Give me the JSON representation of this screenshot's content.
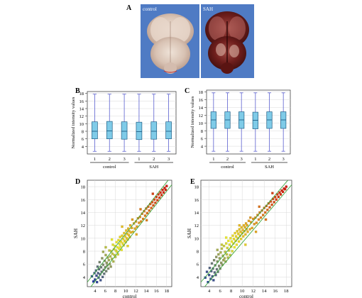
{
  "panels": {
    "A": {
      "letter": "A",
      "left_photo": {
        "label": "control"
      },
      "right_photo": {
        "label": "SAH"
      }
    },
    "B": {
      "letter": "B",
      "chart_index": 0
    },
    "C": {
      "letter": "C",
      "chart_index": 1
    },
    "D": {
      "letter": "D",
      "chart_index": 2
    },
    "E": {
      "letter": "E",
      "chart_index": 3
    }
  },
  "colors": {
    "box_fill": "#7fcbe8",
    "box_stroke": "#1f5f86",
    "whisker": "#5a5fd0",
    "grid": "#d8d8d8",
    "diag_line": "#3fa83f",
    "scatter_low": "#22399c",
    "scatter_mid": "#e8e82a",
    "scatter_high": "#cc1a10"
  },
  "chart_data": [
    {
      "type": "box",
      "ylabel": "Normalized intensity values",
      "yticks": [
        4,
        6,
        8,
        10,
        12,
        14,
        16,
        18
      ],
      "ylim": [
        2,
        18.5
      ],
      "categories": [
        "1",
        "2",
        "3",
        "1",
        "2",
        "3"
      ],
      "groups": [
        "control",
        "SAH"
      ],
      "boxes": [
        {
          "min": 2.7,
          "q1": 6.0,
          "median": 8.0,
          "q3": 10.5,
          "max": 17.8
        },
        {
          "min": 2.7,
          "q1": 6.0,
          "median": 8.1,
          "q3": 10.6,
          "max": 17.8
        },
        {
          "min": 2.7,
          "q1": 5.9,
          "median": 8.0,
          "q3": 10.5,
          "max": 17.8
        },
        {
          "min": 2.7,
          "q1": 5.8,
          "median": 7.9,
          "q3": 10.4,
          "max": 17.8
        },
        {
          "min": 2.7,
          "q1": 5.9,
          "median": 8.0,
          "q3": 10.5,
          "max": 17.8
        },
        {
          "min": 2.7,
          "q1": 6.0,
          "median": 8.0,
          "q3": 10.5,
          "max": 17.8
        }
      ]
    },
    {
      "type": "box",
      "ylabel": "Normalized intensity values",
      "yticks": [
        4,
        6,
        8,
        10,
        12,
        14,
        16,
        18
      ],
      "ylim": [
        2,
        18.5
      ],
      "categories": [
        "1",
        "2",
        "3",
        "1",
        "2",
        "3"
      ],
      "groups": [
        "control",
        "SAH"
      ],
      "boxes": [
        {
          "min": 2.7,
          "q1": 8.6,
          "median": 10.8,
          "q3": 12.9,
          "max": 17.8
        },
        {
          "min": 2.7,
          "q1": 8.6,
          "median": 10.8,
          "q3": 12.9,
          "max": 17.8
        },
        {
          "min": 2.7,
          "q1": 8.6,
          "median": 10.8,
          "q3": 12.9,
          "max": 17.8
        },
        {
          "min": 2.7,
          "q1": 8.5,
          "median": 10.7,
          "q3": 12.8,
          "max": 17.8
        },
        {
          "min": 2.7,
          "q1": 8.6,
          "median": 10.8,
          "q3": 12.9,
          "max": 17.8
        },
        {
          "min": 2.7,
          "q1": 8.6,
          "median": 10.8,
          "q3": 12.9,
          "max": 17.8
        }
      ]
    },
    {
      "type": "scatter",
      "xlabel": "control",
      "ylabel": "SAH",
      "xticks": [
        4,
        6,
        8,
        10,
        12,
        14,
        16,
        18
      ],
      "yticks": [
        4,
        6,
        8,
        10,
        12,
        14,
        16,
        18
      ],
      "xlim": [
        2.5,
        19
      ],
      "ylim": [
        2.5,
        19
      ],
      "fold_lines": [
        {
          "x": [
            2.5,
            19
          ],
          "y": [
            3.2,
            19.7
          ]
        },
        {
          "x": [
            2.5,
            19
          ],
          "y": [
            1.8,
            18.3
          ]
        }
      ],
      "points": [
        [
          3.4,
          4.1
        ],
        [
          3.7,
          3.3
        ],
        [
          3.9,
          4.6
        ],
        [
          4.0,
          3.6
        ],
        [
          4.2,
          5.0
        ],
        [
          4.3,
          4.2
        ],
        [
          4.4,
          3.2
        ],
        [
          4.5,
          5.6
        ],
        [
          4.6,
          4.6
        ],
        [
          4.7,
          3.9
        ],
        [
          4.8,
          5.2
        ],
        [
          4.9,
          6.3
        ],
        [
          5.0,
          4.4
        ],
        [
          5.1,
          3.5
        ],
        [
          5.2,
          5.5
        ],
        [
          5.3,
          4.8
        ],
        [
          5.4,
          6.9
        ],
        [
          5.5,
          4.0
        ],
        [
          5.6,
          5.9
        ],
        [
          5.7,
          5.1
        ],
        [
          5.8,
          4.5
        ],
        [
          5.9,
          6.5
        ],
        [
          6.0,
          5.5
        ],
        [
          6.1,
          7.4
        ],
        [
          6.2,
          4.9
        ],
        [
          6.3,
          6.2
        ],
        [
          6.4,
          5.8
        ],
        [
          6.5,
          7.0
        ],
        [
          6.6,
          5.3
        ],
        [
          6.7,
          6.6
        ],
        [
          6.8,
          8.1
        ],
        [
          6.9,
          6.0
        ],
        [
          7.0,
          7.2
        ],
        [
          7.1,
          5.6
        ],
        [
          7.2,
          8.0
        ],
        [
          7.3,
          6.8
        ],
        [
          7.4,
          7.6
        ],
        [
          7.5,
          9.0
        ],
        [
          7.6,
          6.4
        ],
        [
          7.7,
          8.3
        ],
        [
          7.8,
          7.4
        ],
        [
          7.9,
          8.8
        ],
        [
          8.0,
          7.1
        ],
        [
          8.1,
          8.1
        ],
        [
          8.2,
          9.4
        ],
        [
          8.3,
          7.9
        ],
        [
          8.4,
          8.6
        ],
        [
          8.5,
          7.5
        ],
        [
          8.6,
          9.7
        ],
        [
          8.7,
          8.4
        ],
        [
          8.8,
          9.1
        ],
        [
          8.9,
          10.2
        ],
        [
          9.0,
          8.7
        ],
        [
          9.1,
          9.5
        ],
        [
          9.2,
          8.2
        ],
        [
          9.3,
          10.4
        ],
        [
          9.4,
          9.2
        ],
        [
          9.5,
          9.9
        ],
        [
          9.6,
          8.9
        ],
        [
          9.7,
          10.8
        ],
        [
          9.8,
          9.6
        ],
        [
          9.9,
          10.3
        ],
        [
          10.0,
          9.4
        ],
        [
          10.1,
          11.2
        ],
        [
          10.2,
          10.0
        ],
        [
          10.3,
          10.7
        ],
        [
          10.4,
          9.8
        ],
        [
          10.5,
          11.5
        ],
        [
          10.6,
          10.5
        ],
        [
          10.7,
          11.1
        ],
        [
          10.8,
          10.2
        ],
        [
          10.9,
          12.0
        ],
        [
          11.0,
          10.9
        ],
        [
          11.2,
          11.6
        ],
        [
          11.4,
          11.0
        ],
        [
          11.6,
          12.3
        ],
        [
          11.8,
          11.5
        ],
        [
          12.0,
          12.6
        ],
        [
          12.2,
          11.8
        ],
        [
          12.4,
          13.1
        ],
        [
          12.6,
          12.4
        ],
        [
          12.8,
          13.3
        ],
        [
          13.0,
          12.6
        ],
        [
          13.2,
          13.8
        ],
        [
          13.4,
          13.0
        ],
        [
          13.6,
          14.2
        ],
        [
          13.8,
          13.5
        ],
        [
          14.0,
          14.6
        ],
        [
          14.2,
          13.9
        ],
        [
          14.4,
          14.9
        ],
        [
          14.6,
          14.3
        ],
        [
          14.8,
          15.3
        ],
        [
          15.0,
          14.7
        ],
        [
          15.2,
          15.6
        ],
        [
          15.4,
          15.1
        ],
        [
          15.6,
          16.0
        ],
        [
          15.8,
          15.5
        ],
        [
          16.0,
          16.4
        ],
        [
          16.2,
          15.9
        ],
        [
          16.4,
          16.8
        ],
        [
          16.6,
          16.3
        ],
        [
          16.8,
          17.1
        ],
        [
          17.0,
          16.7
        ],
        [
          17.2,
          17.5
        ],
        [
          17.4,
          17.1
        ],
        [
          17.6,
          17.8
        ],
        [
          17.8,
          17.5
        ],
        [
          18.0,
          18.1
        ],
        [
          11.3,
          12.9
        ],
        [
          12.1,
          10.6
        ],
        [
          9.3,
          11.8
        ],
        [
          7.3,
          9.8
        ],
        [
          6.1,
          8.6
        ],
        [
          5.6,
          7.9
        ],
        [
          12.9,
          14.5
        ],
        [
          14.1,
          12.8
        ],
        [
          15.3,
          16.9
        ],
        [
          10.4,
          8.8
        ]
      ]
    },
    {
      "type": "scatter",
      "xlabel": "control",
      "ylabel": "SAH",
      "xticks": [
        4,
        6,
        8,
        10,
        12,
        14,
        16,
        18
      ],
      "yticks": [
        4,
        6,
        8,
        10,
        12,
        14,
        16,
        18
      ],
      "xlim": [
        2.5,
        19
      ],
      "ylim": [
        2.5,
        19
      ],
      "fold_lines": [
        {
          "x": [
            2.5,
            19
          ],
          "y": [
            3.2,
            19.7
          ]
        },
        {
          "x": [
            2.5,
            19
          ],
          "y": [
            1.8,
            18.3
          ]
        }
      ],
      "points": [
        [
          3.3,
          3.9
        ],
        [
          3.6,
          4.8
        ],
        [
          3.8,
          3.2
        ],
        [
          4.0,
          4.3
        ],
        [
          4.1,
          5.4
        ],
        [
          4.3,
          3.7
        ],
        [
          4.4,
          4.9
        ],
        [
          4.5,
          6.1
        ],
        [
          4.6,
          4.1
        ],
        [
          4.7,
          5.3
        ],
        [
          4.8,
          3.5
        ],
        [
          4.9,
          6.6
        ],
        [
          5.0,
          4.7
        ],
        [
          5.1,
          5.8
        ],
        [
          5.2,
          4.3
        ],
        [
          5.3,
          7.1
        ],
        [
          5.4,
          5.2
        ],
        [
          5.5,
          6.4
        ],
        [
          5.6,
          4.8
        ],
        [
          5.7,
          7.5
        ],
        [
          5.8,
          5.7
        ],
        [
          5.9,
          6.9
        ],
        [
          6.0,
          5.3
        ],
        [
          6.1,
          7.8
        ],
        [
          6.2,
          6.2
        ],
        [
          6.3,
          8.4
        ],
        [
          6.4,
          5.9
        ],
        [
          6.5,
          7.3
        ],
        [
          6.6,
          6.6
        ],
        [
          6.7,
          8.8
        ],
        [
          6.8,
          6.9
        ],
        [
          6.9,
          7.9
        ],
        [
          7.0,
          6.4
        ],
        [
          7.1,
          9.2
        ],
        [
          7.2,
          7.5
        ],
        [
          7.3,
          8.5
        ],
        [
          7.4,
          7.0
        ],
        [
          7.5,
          9.6
        ],
        [
          7.6,
          8.1
        ],
        [
          7.7,
          9.0
        ],
        [
          7.8,
          7.4
        ],
        [
          7.9,
          10.0
        ],
        [
          8.0,
          8.7
        ],
        [
          8.1,
          9.5
        ],
        [
          8.2,
          8.0
        ],
        [
          8.3,
          10.4
        ],
        [
          8.4,
          9.2
        ],
        [
          8.5,
          9.9
        ],
        [
          8.6,
          8.6
        ],
        [
          8.7,
          10.8
        ],
        [
          8.8,
          9.6
        ],
        [
          8.9,
          10.3
        ],
        [
          9.0,
          9.0
        ],
        [
          9.1,
          11.1
        ],
        [
          9.2,
          10.0
        ],
        [
          9.3,
          10.7
        ],
        [
          9.4,
          9.5
        ],
        [
          9.5,
          11.4
        ],
        [
          9.6,
          10.4
        ],
        [
          9.7,
          11.0
        ],
        [
          9.8,
          9.9
        ],
        [
          9.9,
          11.7
        ],
        [
          10.0,
          10.8
        ],
        [
          10.1,
          11.3
        ],
        [
          10.2,
          10.3
        ],
        [
          10.3,
          12.0
        ],
        [
          10.4,
          11.1
        ],
        [
          10.5,
          11.7
        ],
        [
          10.6,
          10.6
        ],
        [
          10.7,
          12.3
        ],
        [
          10.8,
          11.4
        ],
        [
          10.9,
          12.0
        ],
        [
          11.0,
          11.0
        ],
        [
          11.2,
          12.7
        ],
        [
          11.4,
          11.4
        ],
        [
          11.6,
          12.5
        ],
        [
          11.8,
          11.6
        ],
        [
          12.0,
          13.0
        ],
        [
          12.2,
          12.2
        ],
        [
          12.4,
          13.2
        ],
        [
          12.6,
          12.4
        ],
        [
          12.8,
          13.6
        ],
        [
          13.0,
          12.9
        ],
        [
          13.2,
          14.0
        ],
        [
          13.4,
          13.2
        ],
        [
          13.6,
          14.3
        ],
        [
          13.8,
          13.6
        ],
        [
          14.0,
          14.7
        ],
        [
          14.2,
          14.0
        ],
        [
          14.4,
          15.0
        ],
        [
          14.6,
          14.4
        ],
        [
          14.8,
          15.4
        ],
        [
          15.0,
          14.8
        ],
        [
          15.2,
          15.7
        ],
        [
          15.4,
          15.2
        ],
        [
          15.6,
          16.1
        ],
        [
          15.8,
          15.6
        ],
        [
          16.0,
          16.4
        ],
        [
          16.2,
          16.0
        ],
        [
          16.4,
          16.8
        ],
        [
          16.6,
          16.4
        ],
        [
          16.8,
          17.1
        ],
        [
          17.0,
          16.8
        ],
        [
          17.2,
          17.4
        ],
        [
          17.4,
          17.2
        ],
        [
          17.6,
          17.7
        ],
        [
          17.8,
          17.6
        ],
        [
          18.0,
          18.0
        ],
        [
          11.5,
          13.2
        ],
        [
          12.5,
          11.0
        ],
        [
          9.5,
          12.0
        ],
        [
          7.1,
          10.1
        ],
        [
          6.3,
          9.0
        ],
        [
          5.5,
          8.2
        ],
        [
          13.1,
          14.9
        ],
        [
          14.3,
          12.9
        ],
        [
          15.5,
          17.0
        ],
        [
          10.6,
          9.0
        ]
      ]
    }
  ]
}
